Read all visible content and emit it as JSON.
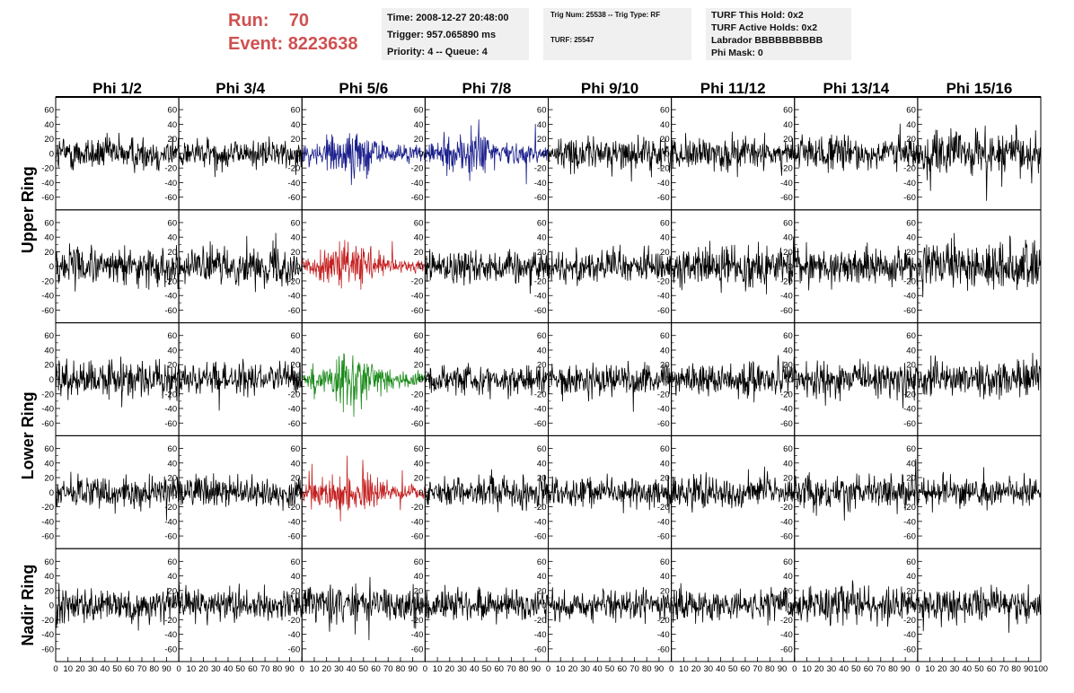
{
  "header": {
    "run_label": "Run:",
    "run_value": "70",
    "event_label": "Event:",
    "event_value": "8223638",
    "time": "Time: 2008-12-27 20:48:00",
    "trigger": "Trigger: 957.065890 ms",
    "priority": "Priority: 4 -- Queue: 4",
    "trig_num": "Trig Num: 25538 -- Trig Type: RF",
    "turf": "TURF: 25547",
    "turf_this_hold": "TURF This Hold: 0x2",
    "turf_active_holds": "TURF Active Holds: 0x2",
    "labrador": "Labrador BBBBBBBBBB",
    "phi_mask": "Phi Mask: 0"
  },
  "chart_data": {
    "type": "line",
    "columns": [
      "Phi 1/2",
      "Phi 3/4",
      "Phi 5/6",
      "Phi 7/8",
      "Phi 9/10",
      "Phi 11/12",
      "Phi 13/14",
      "Phi 15/16"
    ],
    "row_groups": [
      {
        "label": "Upper Ring",
        "rows": [
          0,
          1
        ]
      },
      {
        "label": "Lower Ring",
        "rows": [
          2,
          3
        ]
      },
      {
        "label": "Nadir Ring",
        "rows": [
          4
        ]
      }
    ],
    "xlim": [
      0,
      100
    ],
    "ylim": [
      -70,
      70
    ],
    "y_ticks": [
      60,
      40,
      20,
      0,
      -20,
      -40,
      -60
    ],
    "x_ticks": [
      "0",
      "10",
      "20",
      "30",
      "40",
      "50",
      "60",
      "70",
      "80",
      "90",
      "100"
    ],
    "samples_per_trace": 260,
    "colors": {
      "default": "#000000",
      "upper_highlight": "#1a1f8c",
      "pol_highlight": "#c42020",
      "lower_highlight": "#1a8a1a"
    },
    "traces": [
      [
        {
          "amp": 12,
          "color": "default"
        },
        {
          "amp": 10,
          "color": "default"
        },
        {
          "amp": 16,
          "color": "upper_highlight",
          "burst": true
        },
        {
          "amp": 16,
          "color": "upper_highlight",
          "burst": true
        },
        {
          "amp": 11,
          "color": "default"
        },
        {
          "amp": 11,
          "color": "default"
        },
        {
          "amp": 12,
          "color": "default"
        },
        {
          "amp": 16,
          "color": "default"
        }
      ],
      [
        {
          "amp": 13,
          "color": "default"
        },
        {
          "amp": 12,
          "color": "default"
        },
        {
          "amp": 14,
          "color": "pol_highlight",
          "burst": true
        },
        {
          "amp": 12,
          "color": "default"
        },
        {
          "amp": 11,
          "color": "default"
        },
        {
          "amp": 13,
          "color": "default"
        },
        {
          "amp": 12,
          "color": "default"
        },
        {
          "amp": 16,
          "color": "default"
        }
      ],
      [
        {
          "amp": 12,
          "color": "default"
        },
        {
          "amp": 11,
          "color": "default"
        },
        {
          "amp": 16,
          "color": "lower_highlight",
          "burst": true
        },
        {
          "amp": 10,
          "color": "default"
        },
        {
          "amp": 11,
          "color": "default"
        },
        {
          "amp": 11,
          "color": "default"
        },
        {
          "amp": 13,
          "color": "default"
        },
        {
          "amp": 13,
          "color": "default"
        }
      ],
      [
        {
          "amp": 10,
          "color": "default"
        },
        {
          "amp": 11,
          "color": "default"
        },
        {
          "amp": 14,
          "color": "pol_highlight",
          "burst": true
        },
        {
          "amp": 11,
          "color": "default"
        },
        {
          "amp": 10,
          "color": "default"
        },
        {
          "amp": 10,
          "color": "default"
        },
        {
          "amp": 11,
          "color": "default"
        },
        {
          "amp": 11,
          "color": "default"
        }
      ],
      [
        {
          "amp": 11,
          "color": "default"
        },
        {
          "amp": 10,
          "color": "default"
        },
        {
          "amp": 12,
          "color": "default"
        },
        {
          "amp": 11,
          "color": "default"
        },
        {
          "amp": 10,
          "color": "default"
        },
        {
          "amp": 11,
          "color": "default"
        },
        {
          "amp": 12,
          "color": "default"
        },
        {
          "amp": 12,
          "color": "default"
        }
      ]
    ]
  }
}
